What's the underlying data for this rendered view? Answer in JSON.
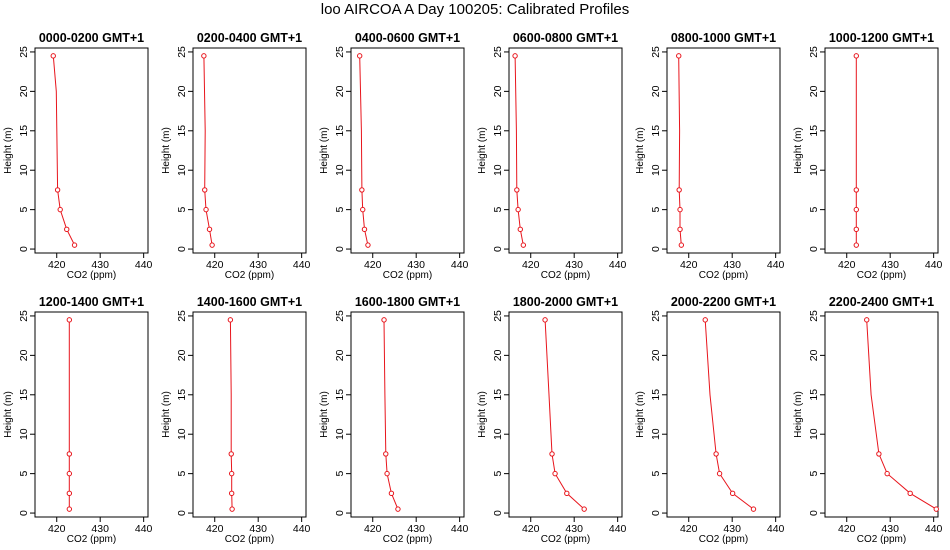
{
  "title": "loo AIRCOA A  Day 100205: Calibrated Profiles",
  "colors": {
    "series": "#e8151c",
    "axis": "#000000"
  },
  "chart_data": [
    {
      "type": "line",
      "title": "0000-0200 GMT+1",
      "xlabel": "CO2 (ppm)",
      "ylabel": "Height (m)",
      "xlim": [
        415,
        441
      ],
      "ylim": [
        -0.5,
        25.5
      ],
      "xticks": [
        420,
        430,
        440
      ],
      "yticks": [
        0,
        5,
        10,
        15,
        20,
        25
      ],
      "series": [
        {
          "x": [
            419.2,
            419.9,
            420.2,
            420.8,
            422.3,
            424.1
          ],
          "y": [
            24.5,
            20,
            7.5,
            5,
            2.5,
            0.5
          ]
        }
      ]
    },
    {
      "type": "line",
      "title": "0200-0400 GMT+1",
      "xlabel": "CO2 (ppm)",
      "ylabel": "Height (m)",
      "xlim": [
        415,
        441
      ],
      "ylim": [
        -0.5,
        25.5
      ],
      "xticks": [
        420,
        430,
        440
      ],
      "yticks": [
        0,
        5,
        10,
        15,
        20,
        25
      ],
      "series": [
        {
          "x": [
            417.5,
            417.8,
            417.7,
            418.0,
            418.8,
            419.4
          ],
          "y": [
            24.5,
            15,
            7.5,
            5,
            2.5,
            0.5
          ]
        }
      ]
    },
    {
      "type": "line",
      "title": "0400-0600 GMT+1",
      "xlabel": "CO2 (ppm)",
      "ylabel": "Height (m)",
      "xlim": [
        415,
        441
      ],
      "ylim": [
        -0.5,
        25.5
      ],
      "xticks": [
        420,
        430,
        440
      ],
      "yticks": [
        0,
        5,
        10,
        15,
        20,
        25
      ],
      "series": [
        {
          "x": [
            417.0,
            417.4,
            417.5,
            417.7,
            418.1,
            418.9
          ],
          "y": [
            24.5,
            15,
            7.5,
            5,
            2.5,
            0.5
          ]
        }
      ]
    },
    {
      "type": "line",
      "title": "0600-0800 GMT+1",
      "xlabel": "CO2 (ppm)",
      "ylabel": "Height (m)",
      "xlim": [
        415,
        441
      ],
      "ylim": [
        -0.5,
        25.5
      ],
      "xticks": [
        420,
        430,
        440
      ],
      "yticks": [
        0,
        5,
        10,
        15,
        20,
        25
      ],
      "series": [
        {
          "x": [
            416.4,
            416.7,
            416.8,
            417.1,
            417.6,
            418.3
          ],
          "y": [
            24.5,
            15,
            7.5,
            5,
            2.5,
            0.5
          ]
        }
      ]
    },
    {
      "type": "line",
      "title": "0800-1000 GMT+1",
      "xlabel": "CO2 (ppm)",
      "ylabel": "Height (m)",
      "xlim": [
        415,
        441
      ],
      "ylim": [
        -0.5,
        25.5
      ],
      "xticks": [
        420,
        430,
        440
      ],
      "yticks": [
        0,
        5,
        10,
        15,
        20,
        25
      ],
      "series": [
        {
          "x": [
            417.7,
            417.9,
            417.8,
            418.0,
            418.0,
            418.3
          ],
          "y": [
            24.5,
            15,
            7.5,
            5,
            2.5,
            0.5
          ]
        }
      ]
    },
    {
      "type": "line",
      "title": "1000-1200 GMT+1",
      "xlabel": "CO2 (ppm)",
      "ylabel": "Height (m)",
      "xlim": [
        415,
        441
      ],
      "ylim": [
        -0.5,
        25.5
      ],
      "xticks": [
        420,
        430,
        440
      ],
      "yticks": [
        0,
        5,
        10,
        15,
        20,
        25
      ],
      "series": [
        {
          "x": [
            422.2,
            422.2,
            422.2,
            422.2,
            422.2,
            422.2
          ],
          "y": [
            24.5,
            15,
            7.5,
            5,
            2.5,
            0.5
          ]
        }
      ]
    },
    {
      "type": "line",
      "title": "1200-1400 GMT+1",
      "xlabel": "CO2 (ppm)",
      "ylabel": "Height (m)",
      "xlim": [
        415,
        441
      ],
      "ylim": [
        -0.5,
        25.5
      ],
      "xticks": [
        420,
        430,
        440
      ],
      "yticks": [
        0,
        5,
        10,
        15,
        20,
        25
      ],
      "series": [
        {
          "x": [
            422.9,
            422.9,
            422.9,
            422.9,
            422.9,
            422.9
          ],
          "y": [
            24.5,
            15,
            7.5,
            5,
            2.5,
            0.5
          ]
        }
      ]
    },
    {
      "type": "line",
      "title": "1400-1600 GMT+1",
      "xlabel": "CO2 (ppm)",
      "ylabel": "Height (m)",
      "xlim": [
        415,
        441
      ],
      "ylim": [
        -0.5,
        25.5
      ],
      "xticks": [
        420,
        430,
        440
      ],
      "yticks": [
        0,
        5,
        10,
        15,
        20,
        25
      ],
      "series": [
        {
          "x": [
            423.6,
            423.8,
            423.8,
            423.9,
            423.9,
            424.0
          ],
          "y": [
            24.5,
            15,
            7.5,
            5,
            2.5,
            0.5
          ]
        }
      ]
    },
    {
      "type": "line",
      "title": "1600-1800 GMT+1",
      "xlabel": "CO2 (ppm)",
      "ylabel": "Height (m)",
      "xlim": [
        415,
        441
      ],
      "ylim": [
        -0.5,
        25.5
      ],
      "xticks": [
        420,
        430,
        440
      ],
      "yticks": [
        0,
        5,
        10,
        15,
        20,
        25
      ],
      "series": [
        {
          "x": [
            422.6,
            422.8,
            423.0,
            423.3,
            424.3,
            425.8
          ],
          "y": [
            24.5,
            15,
            7.5,
            5,
            2.5,
            0.5
          ]
        }
      ]
    },
    {
      "type": "line",
      "title": "1800-2000 GMT+1",
      "xlabel": "CO2 (ppm)",
      "ylabel": "Height (m)",
      "xlim": [
        415,
        441
      ],
      "ylim": [
        -0.5,
        25.5
      ],
      "xticks": [
        420,
        430,
        440
      ],
      "yticks": [
        0,
        5,
        10,
        15,
        20,
        25
      ],
      "series": [
        {
          "x": [
            423.3,
            424.2,
            424.9,
            425.6,
            428.3,
            432.3
          ],
          "y": [
            24.5,
            15,
            7.5,
            5,
            2.5,
            0.5
          ]
        }
      ]
    },
    {
      "type": "line",
      "title": "2000-2200 GMT+1",
      "xlabel": "CO2 (ppm)",
      "ylabel": "Height (m)",
      "xlim": [
        415,
        441
      ],
      "ylim": [
        -0.5,
        25.5
      ],
      "xticks": [
        420,
        430,
        440
      ],
      "yticks": [
        0,
        5,
        10,
        15,
        20,
        25
      ],
      "series": [
        {
          "x": [
            423.8,
            424.9,
            426.3,
            427.1,
            430.1,
            434.9
          ],
          "y": [
            24.5,
            15,
            7.5,
            5,
            2.5,
            0.5
          ]
        }
      ]
    },
    {
      "type": "line",
      "title": "2200-2400 GMT+1",
      "xlabel": "CO2 (ppm)",
      "ylabel": "Height (m)",
      "xlim": [
        415,
        441
      ],
      "ylim": [
        -0.5,
        25.5
      ],
      "xticks": [
        420,
        430,
        440
      ],
      "yticks": [
        0,
        5,
        10,
        15,
        20,
        25
      ],
      "series": [
        {
          "x": [
            424.6,
            425.6,
            427.4,
            429.3,
            434.6,
            440.6
          ],
          "y": [
            24.5,
            15,
            7.5,
            5,
            2.5,
            0.5
          ]
        }
      ]
    }
  ]
}
